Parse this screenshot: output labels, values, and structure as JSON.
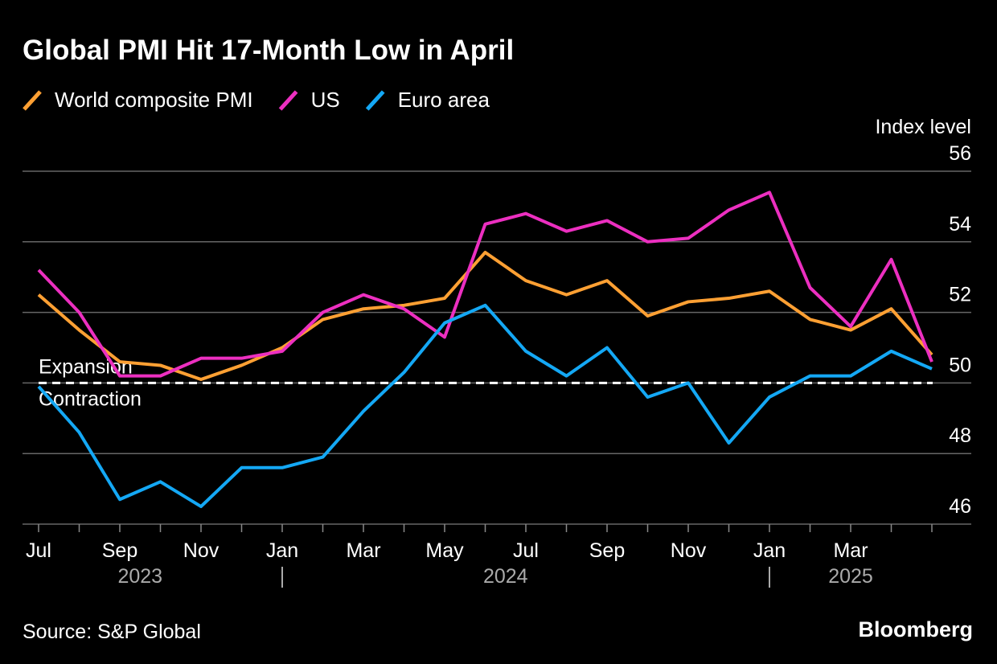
{
  "chart_data": {
    "type": "line",
    "title": "Global PMI Hit 17-Month Low in April",
    "y_label": "Index level",
    "source": "Source: S&P Global",
    "brand": "Bloomberg",
    "categories": [
      "Jul",
      null,
      "Sep",
      null,
      "Nov",
      null,
      "Jan",
      null,
      "Mar",
      null,
      "May",
      null,
      "Jul",
      null,
      "Sep",
      null,
      "Nov",
      null,
      "Jan",
      null,
      "Mar",
      null,
      null
    ],
    "x_groups": [
      {
        "label": "2023",
        "count": 6
      },
      {
        "label": "2024",
        "count": 12
      },
      {
        "label": "2025",
        "count": 5
      }
    ],
    "ylim": [
      46,
      56
    ],
    "yticks": [
      46,
      48,
      50,
      52,
      54,
      56
    ],
    "grid": true,
    "threshold": 50,
    "threshold_labels": {
      "above": "Expansion",
      "below": "Contraction"
    },
    "series": [
      {
        "name": "World composite PMI",
        "color": "#ffa033",
        "values": [
          52.5,
          51.5,
          50.6,
          50.5,
          50.1,
          50.5,
          51.0,
          51.8,
          52.1,
          52.2,
          52.4,
          53.7,
          52.9,
          52.5,
          52.9,
          51.9,
          52.3,
          52.4,
          52.6,
          51.8,
          51.5,
          52.1,
          50.8
        ]
      },
      {
        "name": "US",
        "color": "#ec2fc0",
        "values": [
          53.2,
          52.0,
          50.2,
          50.2,
          50.7,
          50.7,
          50.9,
          52.0,
          52.5,
          52.1,
          51.3,
          54.5,
          54.8,
          54.3,
          54.6,
          54.0,
          54.1,
          54.9,
          55.4,
          52.7,
          51.6,
          53.5,
          50.6
        ]
      },
      {
        "name": "Euro area",
        "color": "#14a8f5",
        "values": [
          49.9,
          48.6,
          46.7,
          47.2,
          46.5,
          47.6,
          47.6,
          47.9,
          49.2,
          50.3,
          51.7,
          52.2,
          50.9,
          50.2,
          51.0,
          49.6,
          50.0,
          48.3,
          49.6,
          50.2,
          50.2,
          50.9,
          50.4
        ]
      }
    ]
  }
}
